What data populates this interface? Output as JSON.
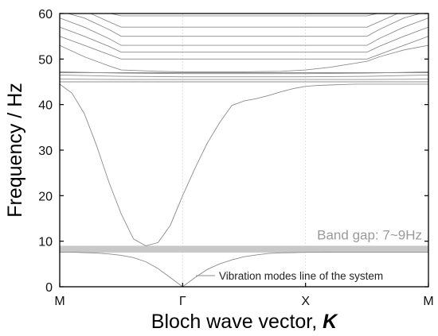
{
  "chart_data": {
    "type": "line",
    "title": "",
    "xlabel_text": "Bloch wave vector, ",
    "xlabel_symbol": "K",
    "ylabel": "Frequency / Hz",
    "ylim": [
      0,
      60
    ],
    "y_ticks": [
      "0",
      "10",
      "20",
      "30",
      "40",
      "50",
      "60"
    ],
    "x_ticks": [
      "M",
      "Γ",
      "X",
      "M"
    ],
    "x_tick_positions": [
      0,
      1,
      2,
      3
    ],
    "grid": true,
    "legend_position": "bottom-right",
    "annotation": "Band gap: 7~9Hz",
    "band_gap": [
      7.5,
      9
    ],
    "colors": {
      "band": "#c8c8c8",
      "lines": "#8c8c8c",
      "axis": "#000000"
    },
    "series": [
      {
        "name": "Vibration modes line of the system",
        "x": [
          0,
          0.1,
          0.2,
          0.3,
          0.4,
          0.5,
          0.6,
          0.7,
          0.8,
          0.9,
          1.0,
          1.1,
          1.2,
          1.3,
          1.4,
          1.5,
          1.6,
          1.7,
          1.8,
          1.9,
          2.0,
          2.1,
          2.2,
          2.3,
          2.4,
          2.5,
          2.6,
          2.7,
          2.8,
          2.9,
          3.0
        ],
        "y": [
          7.6,
          7.6,
          7.5,
          7.4,
          7.2,
          6.9,
          6.4,
          5.5,
          4.0,
          2.0,
          0,
          2.0,
          3.8,
          5.0,
          5.9,
          6.6,
          7.0,
          7.3,
          7.45,
          7.5,
          7.55,
          7.55,
          7.6,
          7.6,
          7.6,
          7.6,
          7.6,
          7.6,
          7.6,
          7.6,
          7.6
        ]
      },
      {
        "x": [
          0,
          0.1,
          0.2,
          0.3,
          0.4,
          0.5,
          0.6,
          0.7,
          0.8,
          0.9,
          1.0,
          1.1,
          1.2,
          1.3,
          1.4,
          1.5,
          1.6,
          1.7,
          1.8,
          1.9,
          2.0,
          2.1,
          2.2,
          2.3,
          2.4,
          2.5,
          2.6,
          2.7,
          2.8,
          2.9,
          3.0
        ],
        "y": [
          44.5,
          42.5,
          38.0,
          31.0,
          23.0,
          16.0,
          10.5,
          9.0,
          9.7,
          13.5,
          20.0,
          26.0,
          31.5,
          36.0,
          39.8,
          40.8,
          41.3,
          42.0,
          42.8,
          43.5,
          44.0,
          44.2,
          44.3,
          44.4,
          44.5,
          44.5,
          44.5,
          44.5,
          44.5,
          44.5,
          44.5
        ]
      },
      {
        "x": [
          0,
          0.5,
          1.0,
          1.5,
          2.0,
          2.5,
          3.0
        ],
        "y": [
          45.0,
          45.0,
          45.0,
          45.0,
          45.0,
          45.0,
          45.0
        ]
      },
      {
        "x": [
          0,
          0.5,
          1.0,
          1.5,
          2.0,
          2.5,
          3.0
        ],
        "y": [
          45.6,
          45.5,
          45.5,
          45.5,
          45.5,
          45.5,
          45.6
        ]
      },
      {
        "x": [
          0,
          0.5,
          1.0,
          1.5,
          2.0,
          2.5,
          3.0
        ],
        "y": [
          46.5,
          46.2,
          46.1,
          46.1,
          46.1,
          46.2,
          46.5
        ]
      },
      {
        "x": [
          0,
          0.5,
          1.0,
          1.5,
          2.0,
          2.5,
          3.0
        ],
        "y": [
          47.2,
          46.9,
          46.8,
          46.8,
          46.8,
          46.9,
          47.2
        ]
      },
      {
        "x": [
          0,
          0.2,
          0.4,
          0.5,
          0.8,
          1.0,
          1.2,
          1.5,
          1.8,
          2.0,
          2.2,
          2.5,
          2.6,
          2.8,
          3.0
        ],
        "y": [
          53.0,
          50.5,
          48.5,
          47.6,
          47.3,
          47.2,
          47.2,
          47.2,
          47.3,
          47.6,
          48.2,
          49.5,
          50.5,
          52.0,
          53.0
        ]
      },
      {
        "x": [
          0,
          0.2,
          0.4,
          0.5,
          2.5,
          2.6,
          2.8,
          3.0
        ],
        "y": [
          55.0,
          53.0,
          51.0,
          50.0,
          50.0,
          51.0,
          53.0,
          55.0
        ]
      },
      {
        "x": [
          0,
          0.2,
          0.4,
          0.5,
          2.5,
          2.6,
          2.8,
          3.0
        ],
        "y": [
          57.0,
          55.0,
          52.8,
          51.5,
          51.5,
          52.8,
          55.0,
          57.0
        ]
      },
      {
        "x": [
          0,
          0.2,
          0.4,
          0.5,
          2.5,
          2.6,
          2.8,
          3.0
        ],
        "y": [
          59.0,
          57.0,
          54.5,
          53.0,
          53.0,
          54.5,
          57.0,
          59.0
        ]
      },
      {
        "x": [
          0,
          0.2,
          0.4,
          0.5,
          2.5,
          2.6,
          2.8,
          3.0
        ],
        "y": [
          60.5,
          59.0,
          56.5,
          55.0,
          55.0,
          56.5,
          59.0,
          60.5
        ]
      },
      {
        "x": [
          0,
          0.25,
          0.5,
          2.5,
          2.75,
          3.0
        ],
        "y": [
          61.0,
          60.0,
          57.0,
          57.0,
          60.0,
          61.0
        ]
      },
      {
        "x": [
          0,
          0.25,
          0.5,
          2.5,
          2.75,
          3.0
        ],
        "y": [
          62.0,
          61.0,
          59.5,
          59.5,
          61.0,
          62.0
        ]
      },
      {
        "x": [
          0,
          0.5,
          1.0,
          1.5,
          2.0,
          2.5,
          3.0
        ],
        "y": [
          47.0,
          47.0,
          47.0,
          47.0,
          47.0,
          47.0,
          47.0
        ]
      }
    ]
  }
}
